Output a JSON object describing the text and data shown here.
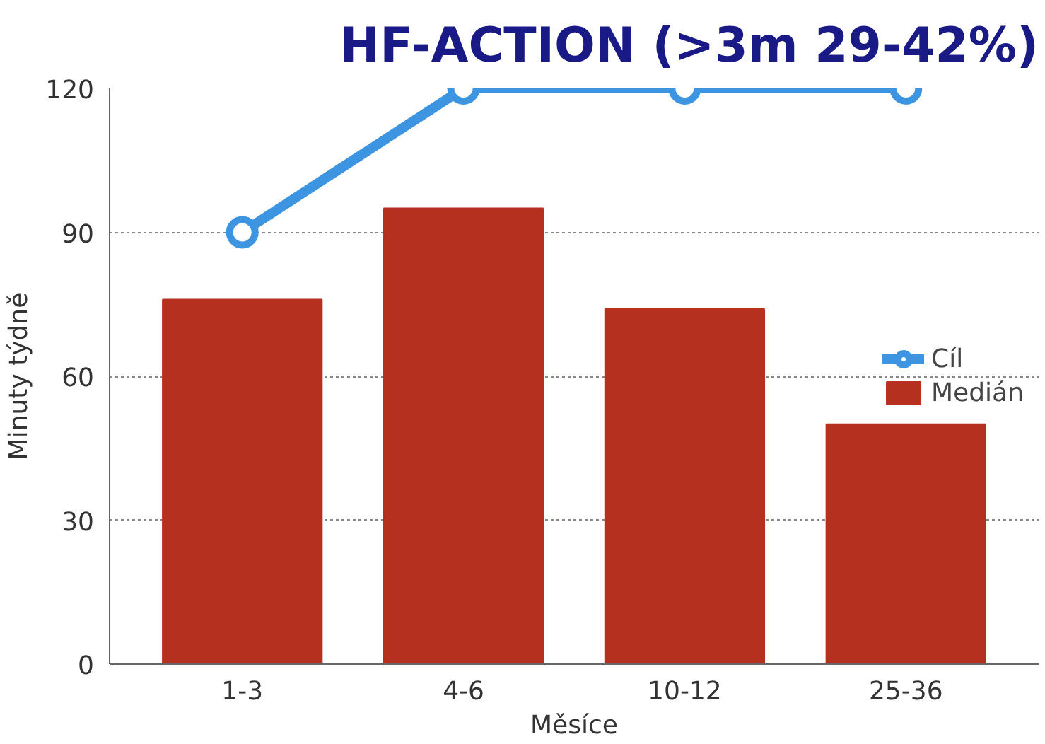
{
  "chart_data": {
    "type": "bar",
    "title": "HF-ACTION (>3m 29-42%)",
    "xlabel": "Měsíce",
    "ylabel": "Minuty týdně",
    "categories": [
      "1-3",
      "4-6",
      "10-12",
      "25-36"
    ],
    "series": [
      {
        "name": "Cíl",
        "type": "line",
        "color": "#3d94e0",
        "values": [
          90,
          120,
          120,
          120
        ]
      },
      {
        "name": "Medián",
        "color": "#b5301f",
        "values": [
          76,
          95,
          74,
          50
        ]
      }
    ],
    "ylim": [
      0,
      120
    ],
    "yticks": [
      0,
      30,
      60,
      90,
      120
    ],
    "grid": "y",
    "legend": "right",
    "marker": "circle"
  }
}
